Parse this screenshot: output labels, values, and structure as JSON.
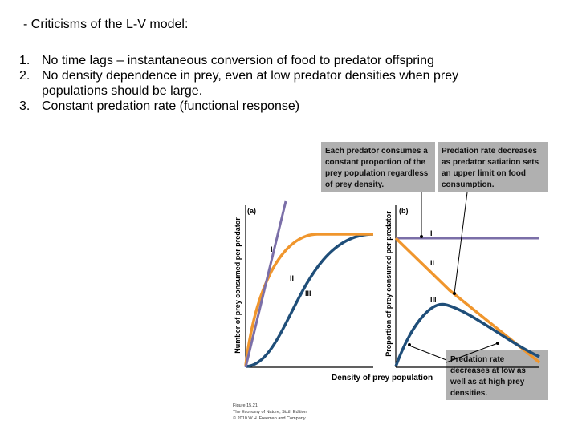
{
  "heading": "- Criticisms of the L-V model:",
  "points": [
    {
      "num": "1.",
      "text": "No time lags – instantaneous conversion of food to predator offspring"
    },
    {
      "num": "2.",
      "text": "No density dependence in prey, even at low predator densities when prey populations should be large."
    },
    {
      "num": "3.",
      "text": "Constant predation rate (functional response)"
    }
  ],
  "figure": {
    "callout_a_lines": [
      "Each predator consumes a",
      "constant proportion of the",
      "prey population regardless",
      "of prey density."
    ],
    "callout_b_lines": [
      "Predation rate decreases",
      "as predator satiation sets",
      "an upper limit on food",
      "consumption."
    ],
    "callout_c_lines": [
      "Predation rate",
      "decreases at low as",
      "well as at high prey",
      "densities."
    ],
    "panel_a_tag": "(a)",
    "panel_b_tag": "(b)",
    "ylabel_a": "Number of prey consumed per predator",
    "ylabel_b": "Proportion of prey consumed per predator",
    "xlabel": "Density of prey population",
    "curve_I": "I",
    "curve_II": "II",
    "curve_III": "III",
    "credit_lines": [
      "Figure 15.21",
      "The Economy of Nature, Sixth Edition",
      "© 2010 W.H. Freeman and Company"
    ],
    "colors": {
      "type_I": "#7b6fa8",
      "type_II": "#f0962d",
      "type_III": "#1f4e79",
      "callout_bg": "#b0b0b0"
    }
  }
}
